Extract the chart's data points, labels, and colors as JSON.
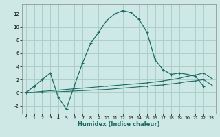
{
  "xlabel": "Humidex (Indice chaleur)",
  "background_color": "#cde8e5",
  "grid_color": "#aacfcb",
  "line_color": "#1a6b62",
  "xlim": [
    -0.5,
    23.5
  ],
  "ylim": [
    -3.2,
    13.5
  ],
  "xticks": [
    0,
    1,
    2,
    3,
    4,
    5,
    6,
    7,
    8,
    9,
    10,
    11,
    12,
    13,
    14,
    15,
    16,
    17,
    18,
    19,
    20,
    21,
    22,
    23
  ],
  "yticks": [
    -2,
    0,
    2,
    4,
    6,
    8,
    10,
    12
  ],
  "curve1_x": [
    0,
    1,
    2,
    3,
    4,
    5,
    6,
    7,
    8,
    9,
    10,
    11,
    12,
    13,
    14,
    15,
    16,
    17,
    18,
    19,
    20,
    21,
    22
  ],
  "curve1_y": [
    0,
    1,
    2,
    3,
    -0.7,
    -2.5,
    1.1,
    4.5,
    7.5,
    9.2,
    11.0,
    12.0,
    12.5,
    12.2,
    11.2,
    9.2,
    5.0,
    3.5,
    2.8,
    3.0,
    2.8,
    2.5,
    1.0
  ],
  "curve2_x": [
    0,
    2,
    5,
    10,
    15,
    17,
    19,
    20,
    21,
    22,
    23
  ],
  "curve2_y": [
    0.0,
    0.2,
    0.5,
    1.0,
    1.5,
    1.8,
    2.2,
    2.5,
    2.7,
    3.0,
    2.2
  ],
  "curve3_x": [
    0,
    2,
    5,
    10,
    15,
    17,
    19,
    20,
    21,
    22,
    23
  ],
  "curve3_y": [
    0.0,
    0.05,
    0.2,
    0.5,
    1.0,
    1.2,
    1.5,
    1.7,
    1.8,
    2.0,
    1.2
  ]
}
